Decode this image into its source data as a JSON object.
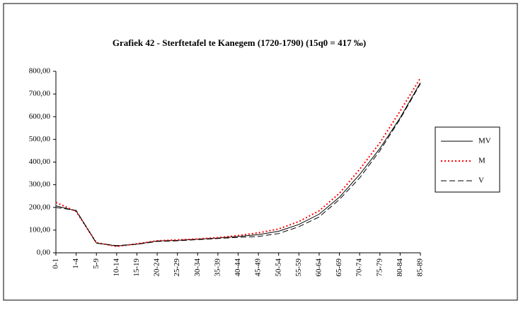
{
  "chart_data": {
    "type": "line",
    "title": "Grafiek 42 - Sterftetafel te Kanegem (1720-1790) (15q0 = 417 ‰)",
    "categories": [
      "0-1",
      "1-4",
      "5-9",
      "10-14",
      "15-19",
      "20-24",
      "25-29",
      "30-34",
      "35-39",
      "40-44",
      "45-49",
      "50-54",
      "55-59",
      "60-64",
      "65-69",
      "70-74",
      "75-79",
      "80-84",
      "85-89"
    ],
    "series": [
      {
        "name": "MV",
        "color": "#000000",
        "dash": "solid",
        "values": [
          207,
          185,
          43,
          30,
          38,
          52,
          55,
          60,
          65,
          72,
          80,
          95,
          125,
          170,
          245,
          345,
          460,
          595,
          750
        ]
      },
      {
        "name": "M",
        "color": "#ff0000",
        "dash": "dotted",
        "values": [
          222,
          182,
          45,
          28,
          40,
          53,
          57,
          61,
          67,
          76,
          88,
          105,
          138,
          185,
          262,
          368,
          485,
          625,
          770
        ]
      },
      {
        "name": "V",
        "color": "#000000",
        "dash": "dashed",
        "values": [
          200,
          187,
          42,
          32,
          37,
          50,
          53,
          58,
          63,
          68,
          72,
          85,
          115,
          158,
          235,
          330,
          450,
          590,
          745
        ]
      }
    ],
    "ylim": [
      0,
      800
    ],
    "yticks": [
      {
        "value": 0,
        "label": "0,00"
      },
      {
        "value": 100,
        "label": "100,00"
      },
      {
        "value": 200,
        "label": "200,00"
      },
      {
        "value": 300,
        "label": "300,00"
      },
      {
        "value": 400,
        "label": "400,00"
      },
      {
        "value": 500,
        "label": "500,00"
      },
      {
        "value": 600,
        "label": "600,00"
      },
      {
        "value": 700,
        "label": "700,00"
      },
      {
        "value": 800,
        "label": "800,00"
      }
    ],
    "grid": false,
    "legend": "right"
  }
}
